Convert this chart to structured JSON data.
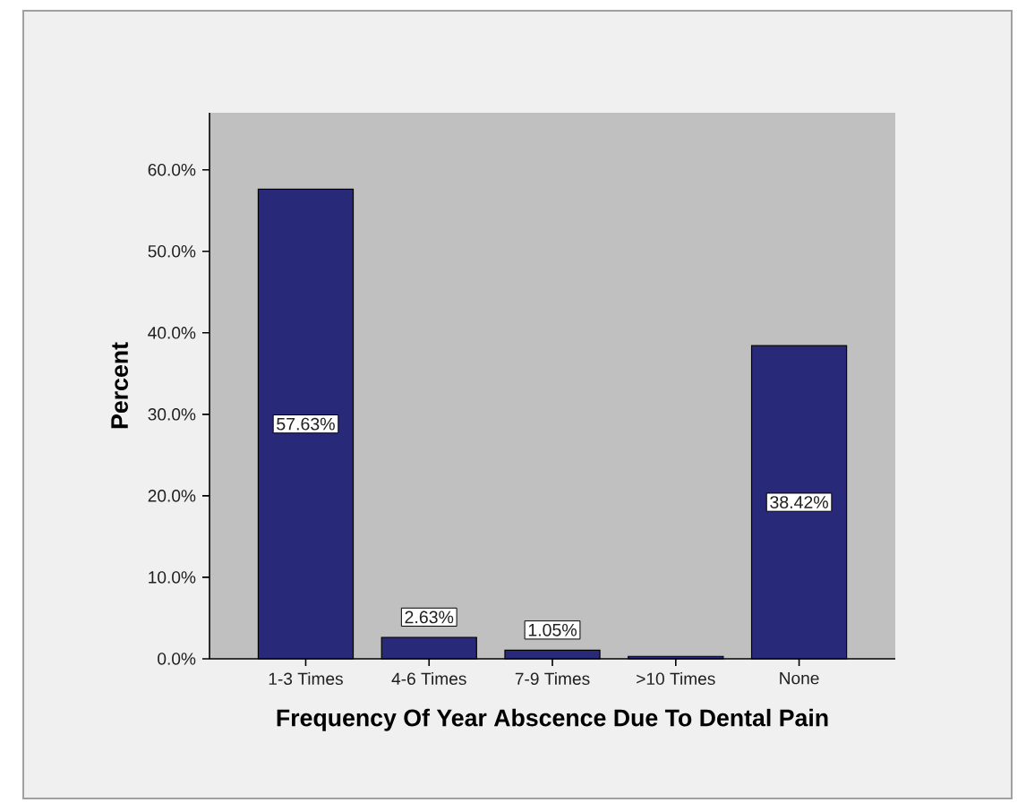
{
  "chart_data": {
    "type": "bar",
    "xlabel": "Frequency Of Year Abscence Due To Dental Pain",
    "ylabel": "Percent",
    "categories": [
      "1-3 Times",
      "4-6 Times",
      "7-9 Times",
      ">10 Times",
      "None"
    ],
    "values": [
      57.63,
      2.63,
      1.05,
      0.3,
      38.42
    ],
    "value_labels": [
      "57.63%",
      "2.63%",
      "1.05%",
      null,
      "38.42%"
    ],
    "color": "#29297a",
    "ylim": [
      0,
      67
    ],
    "yticks": [
      {
        "value": 0,
        "label": "0.0%"
      },
      {
        "value": 10,
        "label": "10.0%"
      },
      {
        "value": 20,
        "label": "20.0%"
      },
      {
        "value": 30,
        "label": "30.0%"
      },
      {
        "value": 40,
        "label": "40.0%"
      },
      {
        "value": 50,
        "label": "50.0%"
      },
      {
        "value": 60,
        "label": "60.0%"
      }
    ]
  }
}
